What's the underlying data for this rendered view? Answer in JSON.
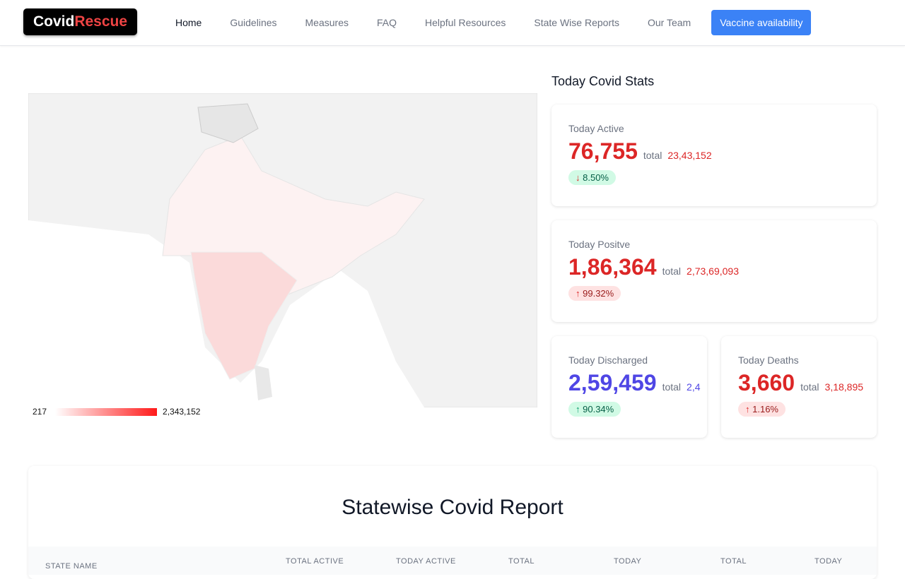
{
  "nav": {
    "logo_a": "Covid",
    "logo_b": "Rescue",
    "links": [
      "Home",
      "Guidelines",
      "Measures",
      "FAQ",
      "Helpful Resources",
      "State Wise Reports",
      "Our Team"
    ],
    "cta": "Vaccine availability"
  },
  "map": {
    "legend_min": "217",
    "legend_max": "2,343,152"
  },
  "stats": {
    "title": "Today Covid Stats",
    "active": {
      "label": "Today Active",
      "value": "76,755",
      "total_label": "total",
      "total": "23,43,152",
      "change": "8.50%",
      "dir": "down"
    },
    "positive": {
      "label": "Today Positve",
      "value": "1,86,364",
      "total_label": "total",
      "total": "2,73,69,093",
      "change": "99.32%",
      "dir": "up"
    },
    "discharged": {
      "label": "Today Discharged",
      "value": "2,59,459",
      "total_label": "total",
      "total": "2,4",
      "change": "90.34%",
      "dir": "up"
    },
    "deaths": {
      "label": "Today Deaths",
      "value": "3,660",
      "total_label": "total",
      "total": "3,18,895",
      "change": "1.16%",
      "dir": "up"
    }
  },
  "report": {
    "title": "Statewise Covid Report",
    "columns": [
      "STATE NAME",
      "TOTAL ACTIVE",
      "TODAY ACTIVE",
      "TOTAL",
      "TODAY",
      "TOTAL",
      "TODAY"
    ]
  }
}
